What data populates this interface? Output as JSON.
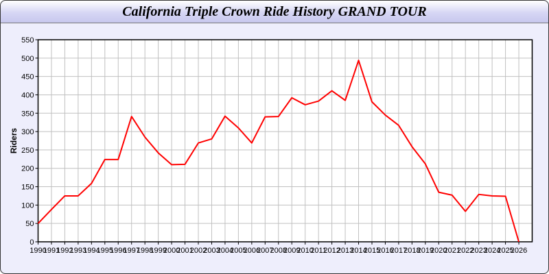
{
  "chart_data": {
    "type": "line",
    "title": "California Triple Crown Ride History GRAND TOUR",
    "xlabel": "",
    "ylabel": "Riders",
    "xlim": [
      1990,
      2027
    ],
    "ylim": [
      0,
      550
    ],
    "yticks": [
      0,
      50,
      100,
      150,
      200,
      250,
      300,
      350,
      400,
      450,
      500,
      550
    ],
    "grid": true,
    "colors": {
      "line": "#ff0000",
      "grid": "#c0c0c0",
      "background": "#eeeefc"
    },
    "x": [
      1990,
      1991,
      1992,
      1993,
      1994,
      1995,
      1996,
      1997,
      1998,
      1999,
      2000,
      2001,
      2002,
      2003,
      2004,
      2005,
      2006,
      2007,
      2008,
      2009,
      2010,
      2011,
      2012,
      2013,
      2014,
      2015,
      2016,
      2017,
      2018,
      2019,
      2020,
      2021,
      2022,
      2023,
      2024,
      2025,
      2026
    ],
    "series": [
      {
        "values": [
          50,
          88,
          125,
          125,
          159,
          224,
          224,
          341,
          285,
          242,
          210,
          211,
          269,
          280,
          342,
          310,
          269,
          340,
          341,
          392,
          373,
          383,
          411,
          385,
          494,
          381,
          345,
          317,
          259,
          212,
          135,
          127,
          83,
          129,
          125,
          124,
          0
        ]
      }
    ]
  }
}
